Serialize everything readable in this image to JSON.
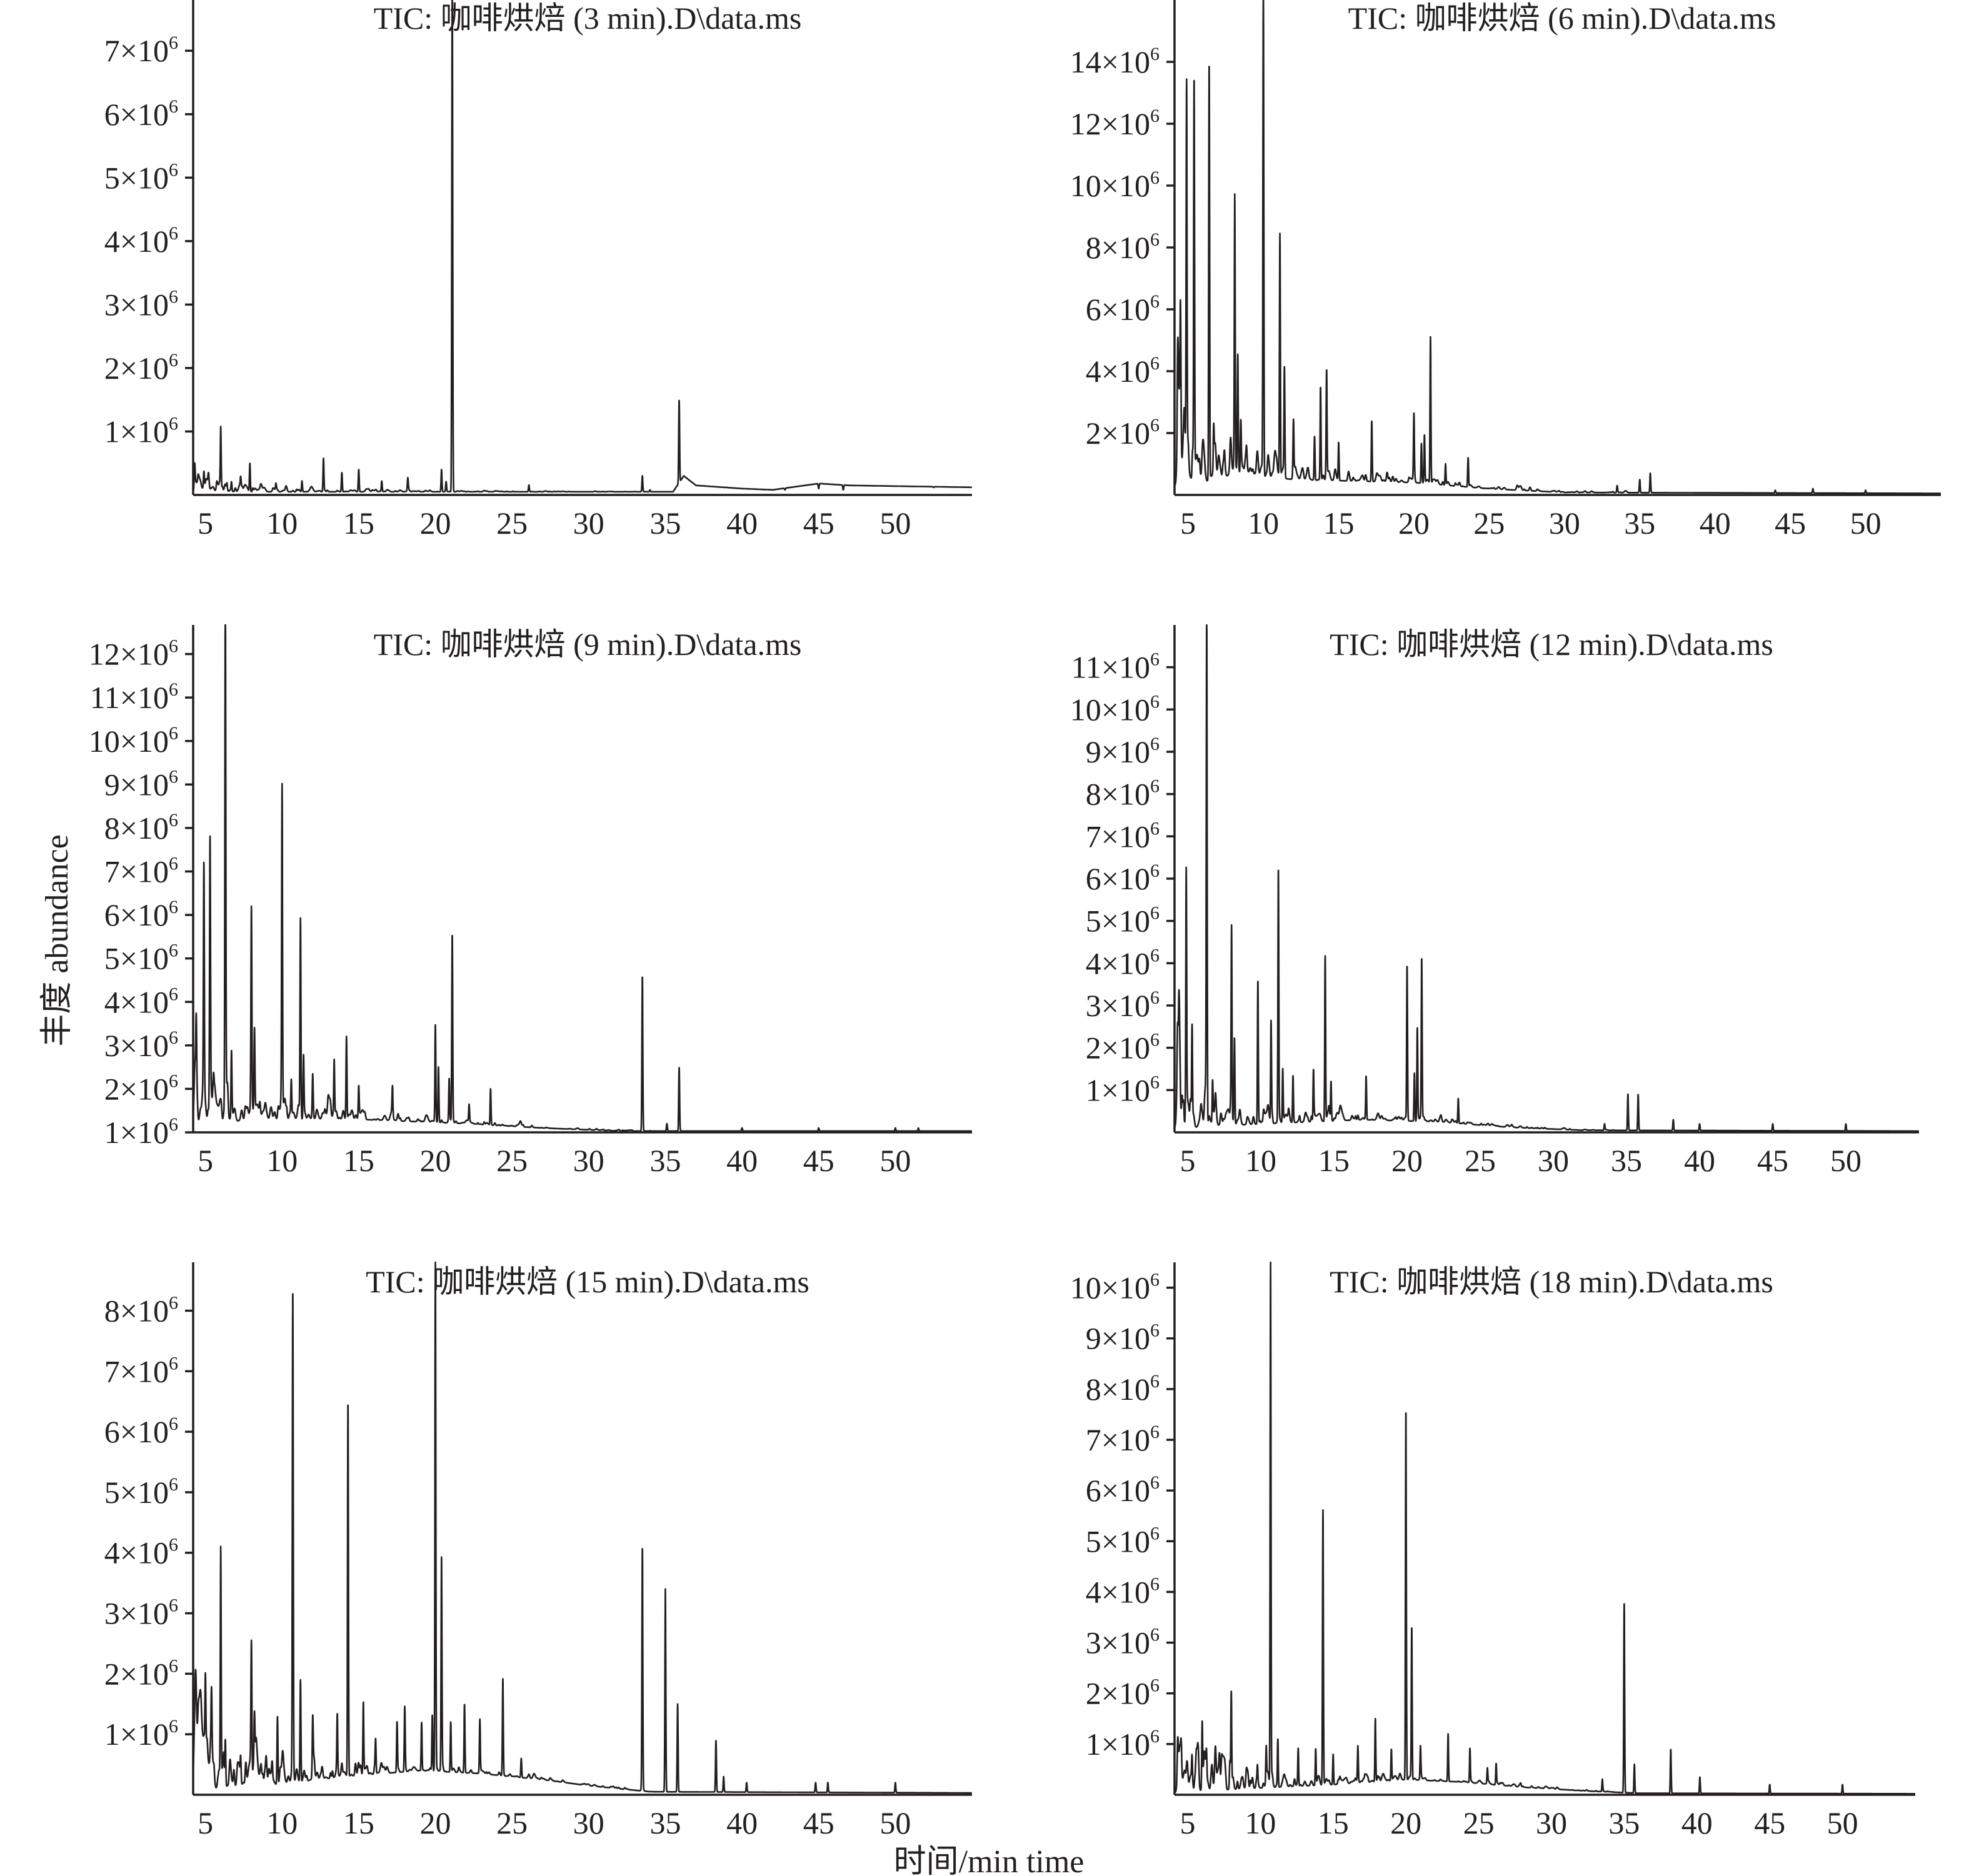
{
  "figure": {
    "ylabel": "丰度 abundance",
    "xlabel": "时间/min time",
    "tick_mult": "×10",
    "tick_exp": "6",
    "line_color": "#231f20"
  },
  "chart_data": [
    {
      "type": "line",
      "title": "TIC: 咖啡烘焙 (3 min).D\\data.ms",
      "xlim": [
        4.2,
        55
      ],
      "ylim": [
        0,
        7.8
      ],
      "xticks": [
        5,
        10,
        15,
        20,
        25,
        30,
        35,
        40,
        45,
        50
      ],
      "yticks": [
        1,
        2,
        3,
        4,
        5,
        6,
        7
      ],
      "y_unit": "x10^6",
      "baseline": [
        [
          4.2,
          0.05
        ],
        [
          35.5,
          0.05
        ],
        [
          36.2,
          0.3
        ],
        [
          37,
          0.15
        ],
        [
          40,
          0.1
        ],
        [
          42,
          0.08
        ],
        [
          45,
          0.18
        ],
        [
          47,
          0.15
        ],
        [
          55,
          0.12
        ]
      ],
      "noise": 0.06,
      "peaks": [
        [
          4.3,
          0.35
        ],
        [
          4.9,
          0.3
        ],
        [
          5.2,
          0.15
        ],
        [
          6.0,
          1.05
        ],
        [
          6.4,
          0.15
        ],
        [
          6.7,
          0.2
        ],
        [
          7.3,
          0.2
        ],
        [
          7.9,
          0.5
        ],
        [
          9.6,
          0.12
        ],
        [
          11.3,
          0.22
        ],
        [
          12.7,
          0.58
        ],
        [
          13.9,
          0.35
        ],
        [
          15.0,
          0.4
        ],
        [
          16.5,
          0.22
        ],
        [
          18.2,
          0.24
        ],
        [
          20.4,
          0.4
        ],
        [
          20.7,
          0.2
        ],
        [
          21.1,
          8.0
        ],
        [
          26.1,
          0.15
        ],
        [
          33.5,
          0.3
        ],
        [
          34.0,
          0.08
        ],
        [
          35.9,
          1.5
        ],
        [
          39.0,
          0.12
        ],
        [
          42.8,
          0.08
        ],
        [
          45.0,
          0.1
        ],
        [
          46.6,
          0.08
        ],
        [
          52.5,
          0.12
        ]
      ]
    },
    {
      "type": "line",
      "title": "TIC: 咖啡烘焙 (6 min).D\\data.ms",
      "xlim": [
        4.1,
        55
      ],
      "ylim": [
        0,
        16
      ],
      "xticks": [
        5,
        10,
        15,
        20,
        25,
        30,
        35,
        40,
        45,
        50
      ],
      "yticks": [
        2,
        4,
        6,
        8,
        10,
        12,
        14
      ],
      "y_unit": "x10^6",
      "baseline": [
        [
          4.2,
          0.3
        ],
        [
          7,
          0.5
        ],
        [
          8,
          0.7
        ],
        [
          12,
          0.5
        ],
        [
          20,
          0.4
        ],
        [
          25,
          0.2
        ],
        [
          30,
          0.08
        ],
        [
          55,
          0.05
        ]
      ],
      "noise": 0.6,
      "peaks": [
        [
          4.3,
          1.3
        ],
        [
          4.5,
          3.6
        ],
        [
          4.9,
          12.2
        ],
        [
          5.4,
          13.0
        ],
        [
          6.4,
          13.9
        ],
        [
          6.7,
          1.8
        ],
        [
          8.1,
          9.3
        ],
        [
          8.3,
          4.1
        ],
        [
          8.5,
          2.1
        ],
        [
          10.0,
          16.5
        ],
        [
          11.1,
          8.4
        ],
        [
          11.4,
          4.0
        ],
        [
          12.0,
          2.3
        ],
        [
          13.4,
          1.9
        ],
        [
          13.8,
          3.5
        ],
        [
          14.2,
          3.8
        ],
        [
          15.0,
          1.7
        ],
        [
          17.2,
          2.4
        ],
        [
          20.0,
          2.5
        ],
        [
          20.5,
          1.6
        ],
        [
          20.7,
          1.9
        ],
        [
          21.1,
          5.1
        ],
        [
          22.1,
          1.0
        ],
        [
          23.6,
          1.2
        ],
        [
          33.5,
          0.3
        ],
        [
          35.0,
          0.5
        ],
        [
          35.7,
          0.7
        ],
        [
          44.0,
          0.15
        ],
        [
          46.5,
          0.2
        ],
        [
          50.0,
          0.15
        ]
      ]
    },
    {
      "type": "line",
      "title": "TIC: 咖啡烘焙 (9 min).D\\data.ms",
      "xlim": [
        4.2,
        55
      ],
      "ylim": [
        1,
        12.67
      ],
      "xticks": [
        5,
        10,
        15,
        20,
        25,
        30,
        35,
        40,
        45,
        50
      ],
      "yticks": [
        1,
        2,
        3,
        4,
        5,
        6,
        7,
        8,
        9,
        10,
        11,
        12
      ],
      "y_unit": "x10^6",
      "baseline": [
        [
          4.2,
          1.15
        ],
        [
          8,
          1.3
        ],
        [
          15,
          1.3
        ],
        [
          22,
          1.2
        ],
        [
          27,
          1.1
        ],
        [
          32,
          1.03
        ],
        [
          55,
          1.03
        ]
      ],
      "noise": 0.35,
      "peaks": [
        [
          4.4,
          2.6
        ],
        [
          4.9,
          6.3
        ],
        [
          5.3,
          7.0
        ],
        [
          6.3,
          12.7
        ],
        [
          6.7,
          2.7
        ],
        [
          8.0,
          5.8
        ],
        [
          8.2,
          3.2
        ],
        [
          10.0,
          8.5
        ],
        [
          10.6,
          2.1
        ],
        [
          11.2,
          5.9
        ],
        [
          11.4,
          2.7
        ],
        [
          12.0,
          2.2
        ],
        [
          13.4,
          2.5
        ],
        [
          14.2,
          3.2
        ],
        [
          15.0,
          2.0
        ],
        [
          17.2,
          1.9
        ],
        [
          20.0,
          3.4
        ],
        [
          20.2,
          2.5
        ],
        [
          20.9,
          2.2
        ],
        [
          21.1,
          5.5
        ],
        [
          22.2,
          1.6
        ],
        [
          23.6,
          2.0
        ],
        [
          33.5,
          4.6
        ],
        [
          35.1,
          1.2
        ],
        [
          35.9,
          2.5
        ],
        [
          40.0,
          1.1
        ],
        [
          45.0,
          1.1
        ],
        [
          50.0,
          1.1
        ],
        [
          51.5,
          1.1
        ]
      ]
    },
    {
      "type": "line",
      "title": "TIC: 咖啡烘焙 (12 min).D\\data.ms",
      "xlim": [
        4.1,
        55
      ],
      "ylim": [
        0,
        12
      ],
      "xticks": [
        5,
        10,
        15,
        20,
        25,
        30,
        35,
        40,
        45,
        50
      ],
      "yticks": [
        1,
        2,
        3,
        4,
        5,
        6,
        7,
        8,
        9,
        10,
        11
      ],
      "y_unit": "x10^6",
      "baseline": [
        [
          4.2,
          0.1
        ],
        [
          10,
          0.2
        ],
        [
          17,
          0.3
        ],
        [
          22,
          0.25
        ],
        [
          27,
          0.12
        ],
        [
          32,
          0.05
        ],
        [
          55,
          0.03
        ]
      ],
      "noise": 0.35,
      "peaks": [
        [
          4.4,
          1.0
        ],
        [
          4.9,
          5.6
        ],
        [
          5.3,
          2.3
        ],
        [
          6.3,
          12.0
        ],
        [
          6.7,
          1.1
        ],
        [
          8.0,
          4.6
        ],
        [
          8.2,
          2.0
        ],
        [
          9.8,
          3.6
        ],
        [
          10.7,
          2.6
        ],
        [
          11.2,
          6.1
        ],
        [
          11.5,
          1.5
        ],
        [
          12.2,
          1.3
        ],
        [
          13.6,
          1.4
        ],
        [
          14.4,
          4.2
        ],
        [
          14.8,
          1.2
        ],
        [
          17.2,
          1.3
        ],
        [
          20.0,
          3.9
        ],
        [
          20.5,
          1.4
        ],
        [
          20.7,
          2.4
        ],
        [
          21.0,
          4.0
        ],
        [
          23.5,
          0.8
        ],
        [
          33.5,
          0.2
        ],
        [
          35.1,
          0.9
        ],
        [
          35.8,
          0.9
        ],
        [
          38.2,
          0.3
        ],
        [
          40.0,
          0.2
        ],
        [
          45.0,
          0.2
        ],
        [
          50.0,
          0.2
        ]
      ]
    },
    {
      "type": "line",
      "title": "TIC: 咖啡烘焙 (15 min).D\\data.ms",
      "xlim": [
        4.2,
        55
      ],
      "ylim": [
        0,
        8.8
      ],
      "xticks": [
        5,
        10,
        15,
        20,
        25,
        30,
        35,
        40,
        45,
        50
      ],
      "yticks": [
        1,
        2,
        3,
        4,
        5,
        6,
        7,
        8
      ],
      "y_unit": "x10^6",
      "baseline": [
        [
          4.2,
          0.08
        ],
        [
          9,
          0.15
        ],
        [
          14,
          0.3
        ],
        [
          19,
          0.4
        ],
        [
          23,
          0.35
        ],
        [
          27,
          0.25
        ],
        [
          30,
          0.15
        ],
        [
          34,
          0.05
        ],
        [
          55,
          0.03
        ]
      ],
      "noise": 0.35,
      "peaks": [
        [
          5.0,
          1.3
        ],
        [
          5.4,
          1.0
        ],
        [
          6.0,
          3.9
        ],
        [
          6.3,
          0.9
        ],
        [
          7.3,
          0.5
        ],
        [
          8.0,
          2.1
        ],
        [
          8.2,
          1.0
        ],
        [
          9.7,
          1.3
        ],
        [
          10.7,
          8.0
        ],
        [
          11.2,
          1.9
        ],
        [
          12.0,
          1.1
        ],
        [
          13.6,
          1.2
        ],
        [
          14.3,
          6.5
        ],
        [
          15.3,
          1.5
        ],
        [
          16.1,
          0.9
        ],
        [
          17.5,
          1.2
        ],
        [
          18.0,
          1.4
        ],
        [
          19.1,
          1.2
        ],
        [
          19.8,
          1.3
        ],
        [
          20.0,
          8.8
        ],
        [
          20.4,
          3.9
        ],
        [
          21.0,
          1.2
        ],
        [
          21.9,
          1.5
        ],
        [
          22.9,
          1.2
        ],
        [
          24.4,
          1.9
        ],
        [
          25.6,
          0.6
        ],
        [
          33.5,
          4.1
        ],
        [
          35.0,
          3.4
        ],
        [
          35.8,
          1.5
        ],
        [
          38.3,
          0.9
        ],
        [
          38.8,
          0.3
        ],
        [
          40.3,
          0.2
        ],
        [
          44.8,
          0.2
        ],
        [
          45.6,
          0.2
        ],
        [
          50.0,
          0.2
        ]
      ]
    },
    {
      "type": "line",
      "title": "TIC: 咖啡烘焙 (18 min).D\\data.ms",
      "xlim": [
        4.1,
        55
      ],
      "ylim": [
        0,
        10.5
      ],
      "xticks": [
        5,
        10,
        15,
        20,
        25,
        30,
        35,
        40,
        45,
        50
      ],
      "yticks": [
        1,
        2,
        3,
        4,
        5,
        6,
        7,
        8,
        9,
        10
      ],
      "y_unit": "x10^6",
      "baseline": [
        [
          4.2,
          0.05
        ],
        [
          9,
          0.12
        ],
        [
          15,
          0.2
        ],
        [
          20,
          0.3
        ],
        [
          24,
          0.25
        ],
        [
          28,
          0.15
        ],
        [
          32,
          0.08
        ],
        [
          36,
          0.03
        ],
        [
          55,
          0.02
        ]
      ],
      "noise": 0.3,
      "peaks": [
        [
          5.3,
          0.5
        ],
        [
          6.0,
          1.3
        ],
        [
          6.3,
          0.5
        ],
        [
          7.9,
          0.5
        ],
        [
          8.0,
          1.9
        ],
        [
          9.8,
          0.5
        ],
        [
          10.4,
          0.8
        ],
        [
          10.7,
          10.5
        ],
        [
          11.2,
          1.1
        ],
        [
          12.6,
          0.9
        ],
        [
          13.8,
          0.9
        ],
        [
          14.3,
          5.5
        ],
        [
          15.0,
          0.8
        ],
        [
          16.7,
          0.9
        ],
        [
          17.9,
          1.5
        ],
        [
          19.0,
          0.9
        ],
        [
          20.0,
          7.6
        ],
        [
          20.4,
          3.3
        ],
        [
          21.0,
          0.9
        ],
        [
          22.9,
          1.2
        ],
        [
          24.4,
          0.9
        ],
        [
          25.6,
          0.5
        ],
        [
          26.2,
          0.6
        ],
        [
          33.5,
          0.3
        ],
        [
          35.0,
          3.8
        ],
        [
          35.7,
          0.6
        ],
        [
          38.2,
          0.9
        ],
        [
          40.2,
          0.35
        ],
        [
          45.0,
          0.2
        ],
        [
          50.0,
          0.2
        ]
      ]
    }
  ]
}
